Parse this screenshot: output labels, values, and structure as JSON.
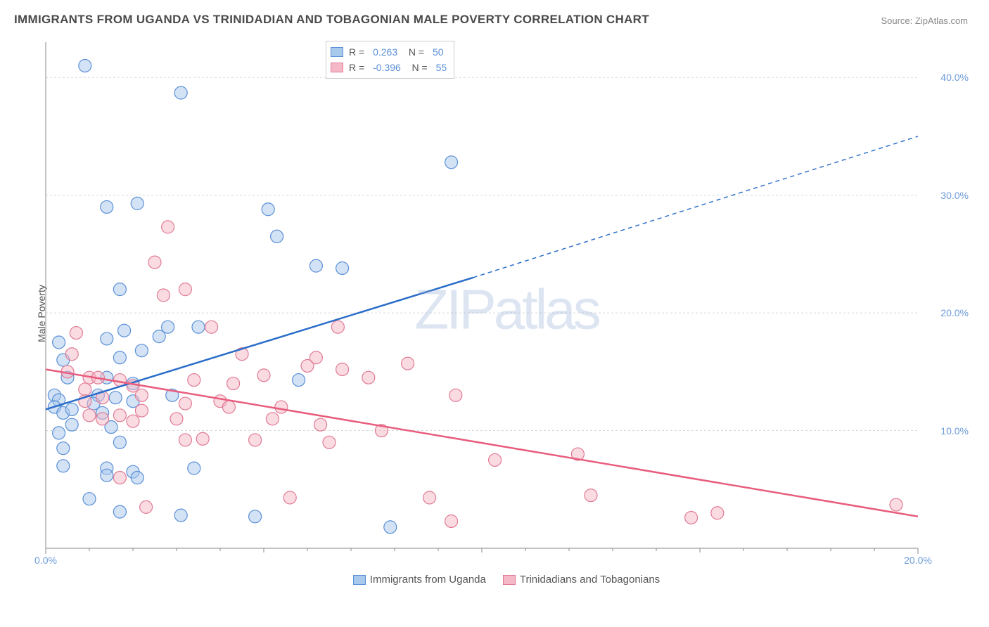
{
  "title": "IMMIGRANTS FROM UGANDA VS TRINIDADIAN AND TOBAGONIAN MALE POVERTY CORRELATION CHART",
  "source": "Source: ZipAtlas.com",
  "ylabel": "Male Poverty",
  "watermark": "ZIPatlas",
  "chart": {
    "type": "scatter-correlation",
    "xlim": [
      0,
      20
    ],
    "ylim": [
      0,
      43
    ],
    "yticks": [
      10,
      20,
      30,
      40
    ],
    "ytick_labels": [
      "10.0%",
      "20.0%",
      "30.0%",
      "40.0%"
    ],
    "xticks": [
      0,
      20
    ],
    "xtick_labels": [
      "0.0%",
      "20.0%"
    ],
    "grid_color": "#d8d8d8",
    "axis_color": "#888888",
    "background_color": "#ffffff",
    "series": [
      {
        "name": "Immigrants from Uganda",
        "fill_color": "#a8c8ec",
        "stroke_color": "#5a8fd8",
        "fill_opacity": 0.5,
        "line_color": "#2a6dc9",
        "marker_radius": 9,
        "R": "0.263",
        "N": "50",
        "points": [
          [
            0.9,
            41.0
          ],
          [
            3.1,
            38.7
          ],
          [
            1.4,
            29.0
          ],
          [
            2.1,
            29.3
          ],
          [
            5.1,
            28.8
          ],
          [
            5.3,
            26.5
          ],
          [
            6.2,
            24.0
          ],
          [
            6.8,
            23.8
          ],
          [
            9.3,
            32.8
          ],
          [
            1.7,
            22.0
          ],
          [
            0.3,
            17.5
          ],
          [
            0.5,
            14.5
          ],
          [
            0.4,
            16.0
          ],
          [
            0.2,
            13.0
          ],
          [
            0.3,
            12.6
          ],
          [
            0.2,
            12.0
          ],
          [
            0.4,
            11.5
          ],
          [
            0.6,
            11.8
          ],
          [
            0.6,
            10.5
          ],
          [
            0.3,
            9.8
          ],
          [
            0.4,
            8.5
          ],
          [
            0.4,
            7.0
          ],
          [
            1.4,
            17.8
          ],
          [
            1.7,
            16.2
          ],
          [
            1.4,
            14.5
          ],
          [
            1.2,
            13.0
          ],
          [
            1.3,
            11.5
          ],
          [
            1.5,
            10.3
          ],
          [
            1.4,
            6.8
          ],
          [
            1.4,
            6.2
          ],
          [
            1.0,
            4.2
          ],
          [
            1.8,
            18.5
          ],
          [
            2.2,
            16.8
          ],
          [
            2.0,
            14.0
          ],
          [
            2.0,
            12.5
          ],
          [
            2.0,
            6.5
          ],
          [
            2.1,
            6.0
          ],
          [
            1.7,
            3.1
          ],
          [
            2.8,
            18.8
          ],
          [
            2.9,
            13.0
          ],
          [
            3.5,
            18.8
          ],
          [
            3.4,
            6.8
          ],
          [
            3.1,
            2.8
          ],
          [
            2.6,
            18.0
          ],
          [
            4.8,
            2.7
          ],
          [
            5.8,
            14.3
          ],
          [
            1.1,
            12.3
          ],
          [
            1.7,
            9.0
          ],
          [
            7.9,
            1.8
          ],
          [
            1.6,
            12.8
          ]
        ],
        "trend_solid": {
          "x1": 0,
          "y1": 11.8,
          "x2": 9.8,
          "y2": 23.0
        },
        "trend_dashed": {
          "x1": 9.8,
          "y1": 23.0,
          "x2": 20.0,
          "y2": 35.0
        }
      },
      {
        "name": "Trinidadians and Tobagonians",
        "fill_color": "#f5b8c6",
        "stroke_color": "#e17a94",
        "fill_opacity": 0.5,
        "line_color": "#e85d7e",
        "marker_radius": 9,
        "R": "-0.396",
        "N": "55",
        "points": [
          [
            0.7,
            18.3
          ],
          [
            0.6,
            16.5
          ],
          [
            0.5,
            15.0
          ],
          [
            1.0,
            14.5
          ],
          [
            0.9,
            13.5
          ],
          [
            0.9,
            12.5
          ],
          [
            1.2,
            14.5
          ],
          [
            1.3,
            12.8
          ],
          [
            1.0,
            11.3
          ],
          [
            1.3,
            11.0
          ],
          [
            1.7,
            14.3
          ],
          [
            2.0,
            13.8
          ],
          [
            2.2,
            13.0
          ],
          [
            2.2,
            11.7
          ],
          [
            2.0,
            10.8
          ],
          [
            1.7,
            11.3
          ],
          [
            2.5,
            24.3
          ],
          [
            2.8,
            27.3
          ],
          [
            2.7,
            21.5
          ],
          [
            3.2,
            22.0
          ],
          [
            3.8,
            18.8
          ],
          [
            3.4,
            14.3
          ],
          [
            3.2,
            12.3
          ],
          [
            3.0,
            11.0
          ],
          [
            3.2,
            9.2
          ],
          [
            3.6,
            9.3
          ],
          [
            4.0,
            12.5
          ],
          [
            4.2,
            12.0
          ],
          [
            4.5,
            16.5
          ],
          [
            4.3,
            14.0
          ],
          [
            4.8,
            9.2
          ],
          [
            5.0,
            14.7
          ],
          [
            5.4,
            12.0
          ],
          [
            5.2,
            11.0
          ],
          [
            5.6,
            4.3
          ],
          [
            6.0,
            15.5
          ],
          [
            6.2,
            16.2
          ],
          [
            6.7,
            18.8
          ],
          [
            6.3,
            10.5
          ],
          [
            6.5,
            9.0
          ],
          [
            6.8,
            15.2
          ],
          [
            7.4,
            14.5
          ],
          [
            7.7,
            10.0
          ],
          [
            8.3,
            15.7
          ],
          [
            8.8,
            4.3
          ],
          [
            9.4,
            13.0
          ],
          [
            10.3,
            7.5
          ],
          [
            12.2,
            8.0
          ],
          [
            12.5,
            4.5
          ],
          [
            14.8,
            2.6
          ],
          [
            15.4,
            3.0
          ],
          [
            19.5,
            3.7
          ],
          [
            9.3,
            2.3
          ],
          [
            1.7,
            6.0
          ],
          [
            2.3,
            3.5
          ]
        ],
        "trend_solid": {
          "x1": 0,
          "y1": 15.2,
          "x2": 20.0,
          "y2": 2.7
        }
      }
    ],
    "bottom_legend": {
      "items": [
        "Immigrants from Uganda",
        "Trinidadians and Tobagonians"
      ]
    }
  }
}
